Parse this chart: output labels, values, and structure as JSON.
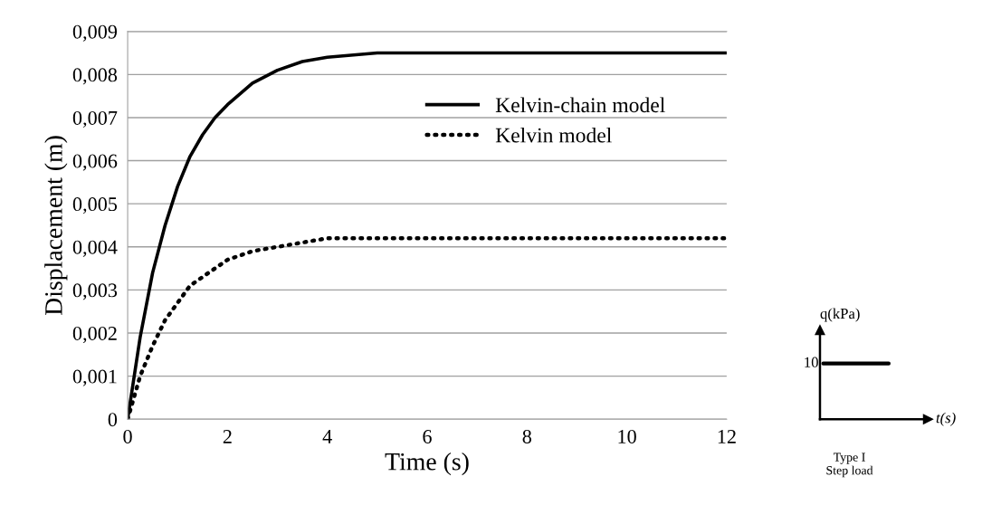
{
  "chart_data": [
    {
      "type": "line",
      "xlabel": "Time (s)",
      "ylabel": "Displacement (m)",
      "xlim": [
        0,
        12
      ],
      "xticks": [
        0,
        2,
        4,
        6,
        8,
        10,
        12
      ],
      "ylim": [
        0,
        0.009
      ],
      "yticks": [
        {
          "value": 0,
          "label": "0"
        },
        {
          "value": 0.001,
          "label": "0,001"
        },
        {
          "value": 0.002,
          "label": "0,002"
        },
        {
          "value": 0.003,
          "label": "0,003"
        },
        {
          "value": 0.004,
          "label": "0,004"
        },
        {
          "value": 0.005,
          "label": "0,005"
        },
        {
          "value": 0.006,
          "label": "0,006"
        },
        {
          "value": 0.007,
          "label": "0,007"
        },
        {
          "value": 0.008,
          "label": "0,008"
        },
        {
          "value": 0.009,
          "label": "0,009"
        }
      ],
      "grid": "y",
      "legend": "top right",
      "marker": "none",
      "series": [
        {
          "name": "Kelvin-chain model",
          "color": "#000000",
          "line_style": "solid",
          "x": [
            0,
            0.25,
            0.5,
            0.75,
            1,
            1.25,
            1.5,
            1.75,
            2,
            2.5,
            3,
            3.5,
            4,
            5,
            6,
            8,
            10,
            12
          ],
          "values": [
            0,
            0.0019,
            0.0034,
            0.0045,
            0.0054,
            0.0061,
            0.0066,
            0.007,
            0.0073,
            0.0078,
            0.0081,
            0.0083,
            0.0084,
            0.0085,
            0.0085,
            0.0085,
            0.0085,
            0.0085
          ]
        },
        {
          "name": "Kelvin model",
          "color": "#000000",
          "line_style": "dotted",
          "x": [
            0,
            0.25,
            0.5,
            0.75,
            1,
            1.25,
            1.5,
            2,
            2.5,
            3,
            3.5,
            4,
            5,
            6,
            8,
            10,
            12
          ],
          "values": [
            0,
            0.001,
            0.0017,
            0.0023,
            0.0027,
            0.0031,
            0.0033,
            0.0037,
            0.0039,
            0.004,
            0.0041,
            0.0042,
            0.0042,
            0.0042,
            0.0042,
            0.0042,
            0.0042
          ]
        }
      ]
    },
    {
      "type": "other",
      "xlabel": "t(s)",
      "ylabel": "q(kPa)",
      "annotations": [
        "10",
        "Type I\nStep load"
      ]
    }
  ]
}
